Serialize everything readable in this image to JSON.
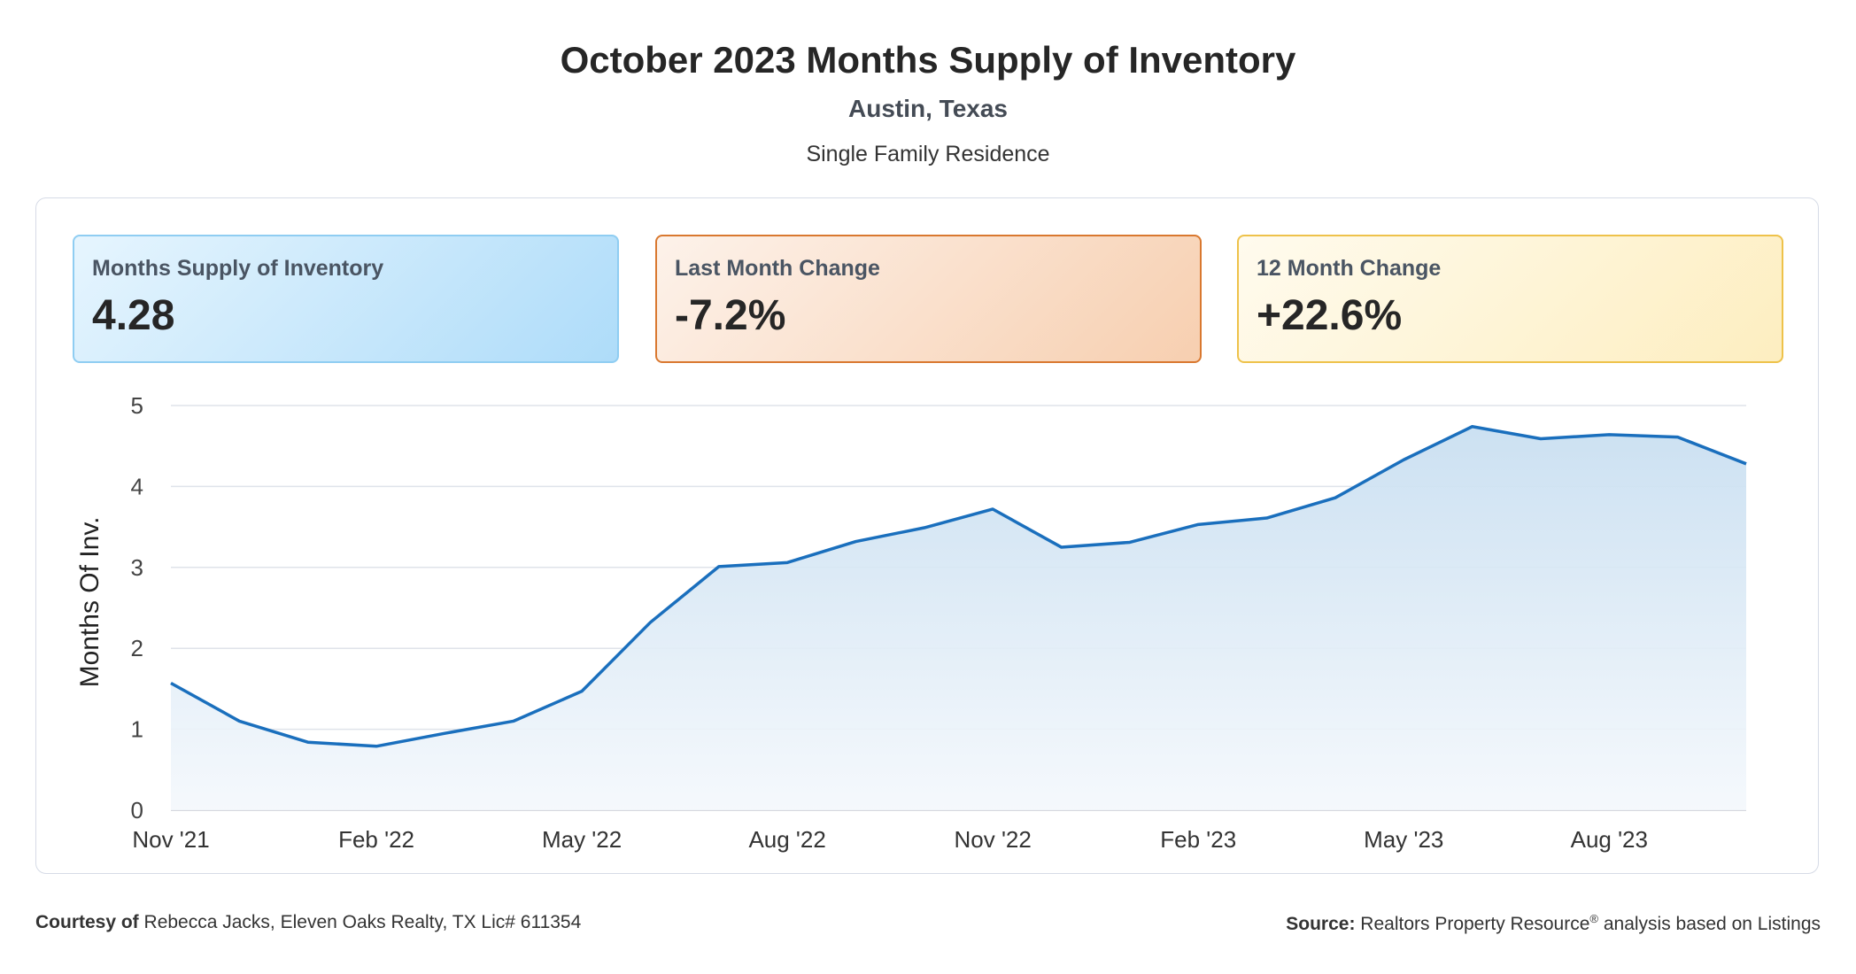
{
  "header": {
    "title": "October 2023 Months Supply of Inventory",
    "location": "Austin, Texas",
    "property_type": "Single Family Residence"
  },
  "cards": [
    {
      "label": "Months Supply of Inventory",
      "value": "4.28",
      "color": "#8fcdf2"
    },
    {
      "label": "Last Month Change",
      "value": "-7.2%",
      "color": "#d9782f"
    },
    {
      "label": "12 Month Change",
      "value": "+22.6%",
      "color": "#eec24a"
    }
  ],
  "chart_data": {
    "type": "area",
    "ylabel": "Months Of Inv.",
    "xlabel": "",
    "ylim": [
      0,
      5
    ],
    "yticks": [
      0,
      1,
      2,
      3,
      4,
      5
    ],
    "grid": true,
    "line_color": "#1a6fbd",
    "x": [
      "Nov '21",
      "Dec '21",
      "Jan '22",
      "Feb '22",
      "Mar '22",
      "Apr '22",
      "May '22",
      "Jun '22",
      "Jul '22",
      "Aug '22",
      "Sep '22",
      "Oct '22",
      "Nov '22",
      "Dec '22",
      "Jan '23",
      "Feb '23",
      "Mar '23",
      "Apr '23",
      "May '23",
      "Jun '23",
      "Jul '23",
      "Aug '23",
      "Sep '23",
      "Oct '23"
    ],
    "tick_labels": [
      "Nov '21",
      "Feb '22",
      "May '22",
      "Aug '22",
      "Nov '22",
      "Feb '23",
      "May '23",
      "Aug '23"
    ],
    "series": [
      {
        "values": [
          1.57,
          1.1,
          0.84,
          0.79,
          0.95,
          1.1,
          1.47,
          2.32,
          3.01,
          3.06,
          3.32,
          3.49,
          3.72,
          3.25,
          3.31,
          3.53,
          3.61,
          3.86,
          4.33,
          4.74,
          4.59,
          4.64,
          4.61,
          4.28
        ]
      }
    ]
  },
  "footer": {
    "courtesy_label": "Courtesy of",
    "courtesy_text": "Rebecca Jacks, Eleven Oaks Realty, TX Lic# 611354",
    "source_label": "Source:",
    "source_text": "Realtors Property Resource",
    "source_mark": "®",
    "source_suffix": "analysis based on Listings"
  }
}
